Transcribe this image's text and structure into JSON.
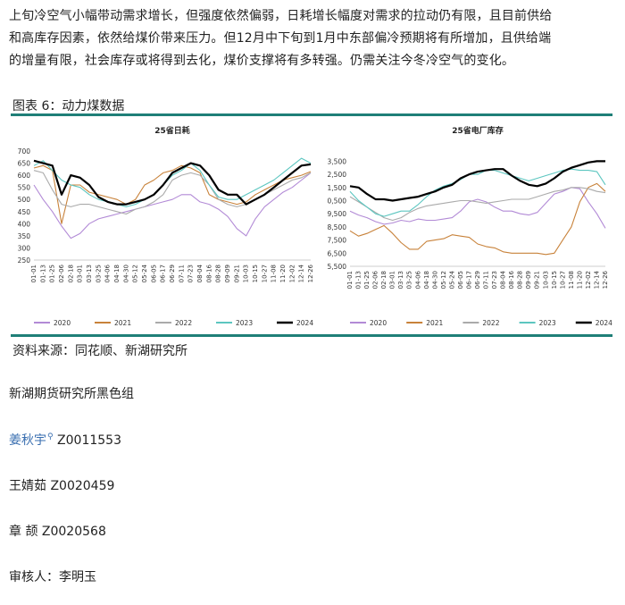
{
  "paragraph": {
    "lines": [
      "上旬冷空气小幅带动需求增长，但强度依然偏弱，日耗增长幅度对需求的拉动仍有限，且目前供给",
      "和高库存因素，依然给煤价带来压力。但12月中下旬到1月中东部偏冷预期将有所增加，且供给端",
      "的增量有限，社会库存或将得到去化，煤价支撑将有多转强。仍需关注今冬冷空气的变化。"
    ]
  },
  "figure": {
    "title": "图表 6：动力煤数据"
  },
  "source": "资料来源：同花顺、新湖研究所",
  "team": "新湖期货研究所黑色组",
  "analysts": [
    {
      "name": "姜秋宇",
      "id": "Z0011553",
      "link": true
    },
    {
      "name": "王婧茹",
      "id": "Z0020459",
      "link": false
    },
    {
      "name": "章 颉",
      "id": "Z0020568",
      "link": false
    }
  ],
  "reviewer": "审核人：李明玉",
  "colors": {
    "c2020": "#b28ad6",
    "c2021": "#c8823a",
    "c2022": "#aaaaaa",
    "c2023": "#5cc6c0",
    "c2024": "#000000",
    "rule": "#1f7f78"
  },
  "chart_data": [
    {
      "type": "line",
      "title": "25省日耗",
      "ylim": [
        250,
        700
      ],
      "yticks": [
        250,
        300,
        350,
        400,
        450,
        500,
        550,
        600,
        650,
        700
      ],
      "xticks": [
        "01-01",
        "01-13",
        "01-25",
        "02-06",
        "02-18",
        "03-01",
        "03-13",
        "03-25",
        "04-06",
        "04-18",
        "04-30",
        "05-12",
        "05-24",
        "06-05",
        "06-17",
        "06-29",
        "07-11",
        "07-23",
        "08-04",
        "08-16",
        "08-28",
        "09-09",
        "09-21",
        "10-03",
        "10-15",
        "10-27",
        "11-08",
        "11-20",
        "12-02",
        "12-14",
        "12-26"
      ],
      "legend": "bottom",
      "series": [
        {
          "name": "2020",
          "color_key": "c2020",
          "values": [
            560,
            500,
            450,
            390,
            340,
            360,
            400,
            420,
            430,
            440,
            450,
            460,
            470,
            480,
            490,
            500,
            520,
            520,
            490,
            480,
            460,
            430,
            380,
            350,
            420,
            470,
            500,
            530,
            550,
            580,
            610
          ]
        },
        {
          "name": "2021",
          "color_key": "c2021",
          "values": [
            630,
            640,
            620,
            400,
            560,
            560,
            530,
            520,
            510,
            500,
            480,
            500,
            560,
            580,
            610,
            620,
            640,
            630,
            610,
            520,
            500,
            490,
            480,
            490,
            520,
            540,
            560,
            580,
            590,
            600,
            615
          ]
        },
        {
          "name": "2022",
          "color_key": "c2022",
          "values": [
            620,
            610,
            540,
            480,
            470,
            480,
            480,
            470,
            460,
            450,
            440,
            460,
            470,
            490,
            520,
            580,
            600,
            610,
            600,
            560,
            500,
            480,
            470,
            480,
            500,
            520,
            540,
            560,
            580,
            590,
            610
          ]
        },
        {
          "name": "2023",
          "color_key": "c2023",
          "values": [
            640,
            660,
            620,
            580,
            560,
            550,
            520,
            500,
            490,
            480,
            470,
            480,
            500,
            520,
            560,
            600,
            620,
            650,
            620,
            560,
            510,
            500,
            500,
            520,
            540,
            560,
            580,
            610,
            640,
            670,
            650
          ]
        },
        {
          "name": "2024",
          "color_key": "c2024",
          "values": [
            660,
            650,
            640,
            520,
            600,
            590,
            560,
            510,
            490,
            480,
            480,
            490,
            500,
            520,
            560,
            610,
            630,
            650,
            640,
            600,
            540,
            520,
            520,
            480,
            500,
            520,
            550,
            580,
            610,
            640,
            645
          ]
        }
      ]
    },
    {
      "type": "line",
      "title": "25省电厂库存",
      "ylim": [
        5500,
        14000
      ],
      "yticks": [
        5500,
        6500,
        7500,
        8500,
        9500,
        10500,
        11500,
        12500,
        13500
      ],
      "xticks": [
        "01-01",
        "01-13",
        "01-25",
        "02-06",
        "02-18",
        "03-01",
        "03-13",
        "03-25",
        "04-06",
        "04-18",
        "04-30",
        "05-12",
        "05-24",
        "06-05",
        "06-17",
        "06-29",
        "07-11",
        "07-23",
        "08-04",
        "08-16",
        "08-28",
        "09-09",
        "09-21",
        "10-03",
        "10-15",
        "10-27",
        "11-08",
        "11-20",
        "12-02",
        "12-14",
        "12-26"
      ],
      "legend": "bottom",
      "series": [
        {
          "name": "2020",
          "color_key": "c2020",
          "values": [
            9700,
            9400,
            9200,
            8900,
            8700,
            8800,
            9000,
            8900,
            9100,
            9000,
            9000,
            9100,
            9200,
            9700,
            10400,
            10600,
            10400,
            10000,
            9700,
            9700,
            9500,
            9400,
            9600,
            10300,
            11000,
            11200,
            11500,
            11400,
            10400,
            9500,
            8400
          ]
        },
        {
          "name": "2021",
          "color_key": "c2021",
          "values": [
            8200,
            7800,
            8000,
            8300,
            8600,
            8000,
            7300,
            6800,
            6800,
            7400,
            7500,
            7600,
            7900,
            7800,
            7700,
            7200,
            7000,
            6900,
            6600,
            6500,
            6500,
            6500,
            6500,
            6400,
            6500,
            7500,
            8500,
            10400,
            11500,
            11800,
            11200
          ]
        },
        {
          "name": "2022",
          "color_key": "c2022",
          "values": [
            10800,
            10400,
            10000,
            9600,
            9200,
            9000,
            9200,
            9600,
            9900,
            10100,
            10200,
            10300,
            10400,
            10500,
            10500,
            10400,
            10300,
            10400,
            10500,
            10600,
            10600,
            10600,
            10800,
            11000,
            11200,
            11300,
            11500,
            11500,
            11400,
            11200,
            11100
          ]
        },
        {
          "name": "2023",
          "color_key": "c2023",
          "values": [
            11200,
            10500,
            10000,
            9500,
            9300,
            9500,
            9700,
            9700,
            10200,
            10800,
            11300,
            11600,
            11800,
            12100,
            12500,
            12500,
            12800,
            12800,
            12600,
            12400,
            12200,
            12000,
            12200,
            12400,
            12600,
            12800,
            12900,
            12800,
            12800,
            12700,
            11700
          ]
        },
        {
          "name": "2024",
          "color_key": "c2024",
          "values": [
            11600,
            11500,
            11000,
            10600,
            10600,
            10500,
            10600,
            10700,
            10800,
            11000,
            11200,
            11500,
            11700,
            12200,
            12500,
            12700,
            12800,
            12900,
            12900,
            12400,
            12000,
            11700,
            11600,
            11800,
            12200,
            12700,
            13000,
            13200,
            13400,
            13500,
            13500
          ]
        }
      ]
    }
  ]
}
